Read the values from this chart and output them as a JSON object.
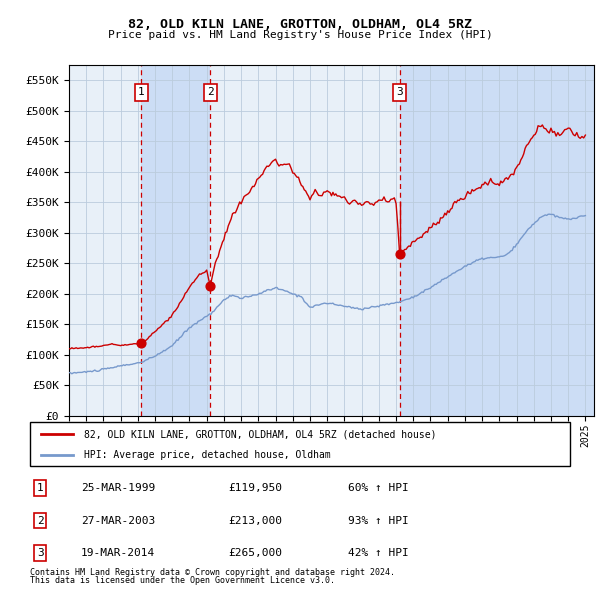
{
  "title": "82, OLD KILN LANE, GROTTON, OLDHAM, OL4 5RZ",
  "subtitle": "Price paid vs. HM Land Registry's House Price Index (HPI)",
  "sale_dates_num": [
    1999.208,
    2003.208,
    2014.208
  ],
  "sale_prices": [
    119950,
    213000,
    265000
  ],
  "sale_labels": [
    "1",
    "2",
    "3"
  ],
  "hpi_label": "HPI: Average price, detached house, Oldham",
  "property_label": "82, OLD KILN LANE, GROTTON, OLDHAM, OL4 5RZ (detached house)",
  "table_rows": [
    [
      "1",
      "25-MAR-1999",
      "£119,950",
      "60% ↑ HPI"
    ],
    [
      "2",
      "27-MAR-2003",
      "£213,000",
      "93% ↑ HPI"
    ],
    [
      "3",
      "19-MAR-2014",
      "£265,000",
      "42% ↑ HPI"
    ]
  ],
  "footnote1": "Contains HM Land Registry data © Crown copyright and database right 2024.",
  "footnote2": "This data is licensed under the Open Government Licence v3.0.",
  "ylim": [
    0,
    575000
  ],
  "yticks": [
    0,
    50000,
    100000,
    150000,
    200000,
    250000,
    300000,
    350000,
    400000,
    450000,
    500000,
    550000
  ],
  "xlim": [
    1995.0,
    2025.5
  ],
  "red_color": "#cc0000",
  "blue_color": "#7799cc",
  "shade_color": "#ccddf5",
  "vline_color": "#cc0000",
  "grid_color": "#bbccdd",
  "bg_color": "#e8f0f8"
}
